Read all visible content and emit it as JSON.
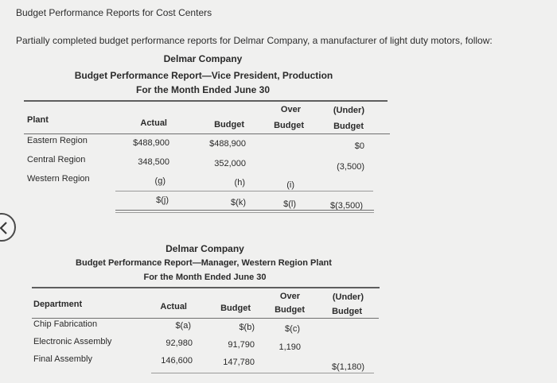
{
  "page": {
    "title": "Budget Performance Reports for Cost Centers",
    "intro": "Partially completed budget performance reports for Delmar Company, a manufacturer of light duty motors, follow:"
  },
  "report1": {
    "company": "Delmar Company",
    "title": "Budget Performance Report—Vice President, Production",
    "period": "For the Month Ended June 30",
    "headers": {
      "label": "Plant",
      "actual": "Actual",
      "budget": "Budget",
      "over1": "Over",
      "over2": "Budget",
      "under1": "(Under)",
      "under2": "Budget"
    },
    "rows": [
      {
        "label": "Eastern Region",
        "actual": "$488,900",
        "budget": "$488,900",
        "over": "",
        "under": "$0"
      },
      {
        "label": "Central Region",
        "actual": "348,500",
        "budget": "352,000",
        "over": "",
        "under": "(3,500)"
      },
      {
        "label": "Western Region",
        "actual": "(g)",
        "budget": "(h)",
        "over": "(i)",
        "under": ""
      }
    ],
    "totals": {
      "actual": "$(j)",
      "budget": "$(k)",
      "over": "$(l)",
      "under": "$(3,500)"
    }
  },
  "report2": {
    "company": "Delmar Company",
    "title": "Budget Performance Report—Manager, Western Region Plant",
    "period": "For the Month Ended June 30",
    "headers": {
      "label": "Department",
      "actual": "Actual",
      "budget": "Budget",
      "over1": "Over",
      "over2": "Budget",
      "under1": "(Under)",
      "under2": "Budget"
    },
    "rows": [
      {
        "label": "Chip Fabrication",
        "actual": "$(a)",
        "budget": "$(b)",
        "over": "$(c)",
        "under": ""
      },
      {
        "label": "Electronic Assembly",
        "actual": "92,980",
        "budget": "91,790",
        "over": "1,190",
        "under": ""
      },
      {
        "label": "Final Assembly",
        "actual": "146,600",
        "budget": "147,780",
        "over": "",
        "under": "$(1,180)"
      }
    ]
  }
}
